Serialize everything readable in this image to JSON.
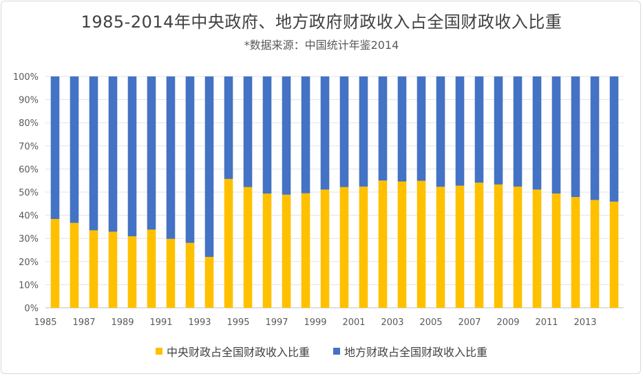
{
  "chart_data": {
    "type": "bar",
    "stacked": true,
    "title": "1985-2014年中央政府、地方政府财政收入占全国财政收入比重",
    "subtitle": "*数据来源：中国统计年鉴2014",
    "categories": [
      "1985",
      "1986",
      "1987",
      "1988",
      "1989",
      "1990",
      "1991",
      "1992",
      "1993",
      "1994",
      "1995",
      "1996",
      "1997",
      "1998",
      "1999",
      "2000",
      "2001",
      "2002",
      "2003",
      "2004",
      "2005",
      "2006",
      "2007",
      "2008",
      "2009",
      "2010",
      "2011",
      "2012",
      "2013",
      "2014"
    ],
    "x_tick_labels": [
      "1985",
      "",
      "1987",
      "",
      "1989",
      "",
      "1991",
      "",
      "1993",
      "",
      "1995",
      "",
      "1997",
      "",
      "1999",
      "",
      "2001",
      "",
      "2003",
      "",
      "2005",
      "",
      "2007",
      "",
      "2009",
      "",
      "2011",
      "",
      "2013",
      ""
    ],
    "y_tick_labels": [
      "0%",
      "10%",
      "20%",
      "30%",
      "40%",
      "50%",
      "60%",
      "70%",
      "80%",
      "90%",
      "100%"
    ],
    "ylim": [
      0,
      100
    ],
    "grid": true,
    "legend_position": "bottom",
    "series": [
      {
        "name": "中央财政占全国财政收入比重",
        "color": "#FFC000",
        "values": [
          38.4,
          36.7,
          33.5,
          32.9,
          30.9,
          33.8,
          29.8,
          28.1,
          22.0,
          55.7,
          52.2,
          49.4,
          48.9,
          49.5,
          51.1,
          52.2,
          52.4,
          55.0,
          54.6,
          54.9,
          52.3,
          52.8,
          54.1,
          53.3,
          52.4,
          51.1,
          49.4,
          47.9,
          46.6,
          45.9
        ]
      },
      {
        "name": "地方财政占全国财政收入比重",
        "color": "#4472C4",
        "values": [
          61.6,
          63.3,
          66.5,
          67.1,
          69.1,
          66.2,
          70.2,
          71.9,
          78.0,
          44.3,
          47.8,
          50.6,
          51.1,
          50.5,
          48.9,
          47.8,
          47.6,
          45.0,
          45.4,
          45.1,
          47.7,
          47.2,
          45.9,
          46.7,
          47.6,
          48.9,
          50.6,
          52.1,
          53.4,
          54.1
        ]
      }
    ]
  }
}
